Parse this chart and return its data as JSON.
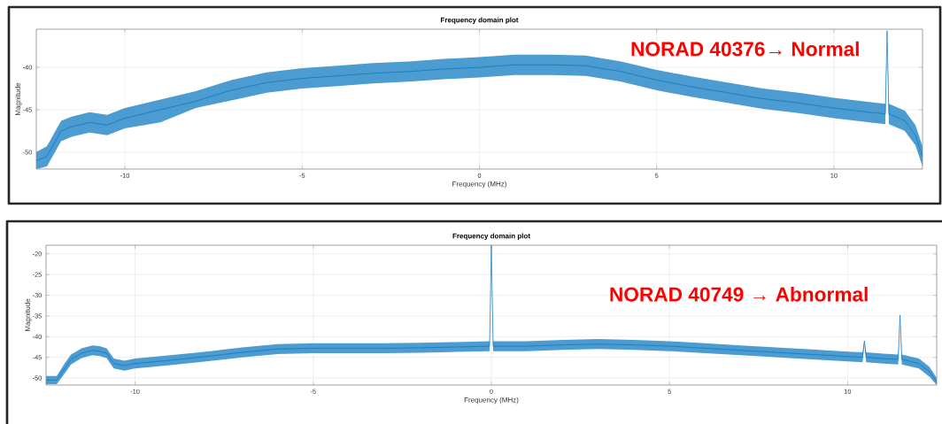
{
  "chart_data": [
    {
      "type": "line",
      "title": "Frequency domain plot",
      "xlabel": "Frequency (MHz)",
      "ylabel": "Magnitude",
      "xlim": [
        -12.5,
        12.5
      ],
      "ylim": [
        -52,
        -35.5
      ],
      "xticks": [
        -10,
        -5,
        0,
        5,
        10
      ],
      "yticks": [
        -50,
        -45,
        -40
      ],
      "grid": true,
      "x": [
        -12.5,
        -12.2,
        -12,
        -11.8,
        -11.5,
        -11,
        -10.5,
        -10,
        -9,
        -8,
        -7,
        -6,
        -5,
        -4,
        -3,
        -2,
        -1,
        0,
        1,
        2,
        3,
        4,
        5,
        6,
        7,
        8,
        9,
        10,
        11,
        11.45,
        11.5,
        11.55,
        12,
        12.3,
        12.5
      ],
      "series": [
        {
          "color": "#0072bd",
          "values": [
            -51,
            -50.5,
            -49,
            -47.5,
            -47,
            -46.5,
            -46.8,
            -46,
            -45,
            -44,
            -42.7,
            -41.8,
            -41.3,
            -41,
            -40.7,
            -40.5,
            -40.2,
            -40,
            -39.7,
            -39.7,
            -39.8,
            -40.5,
            -41.5,
            -42.3,
            -43,
            -43.7,
            -44.2,
            -44.8,
            -45.3,
            -45.5,
            -35.7,
            -45.5,
            -46.3,
            -48,
            -50.5
          ],
          "lower": [
            -52,
            -51.7,
            -50.2,
            -48.7,
            -48.2,
            -47.7,
            -48,
            -47.2,
            -46.5,
            -44.8,
            -43.9,
            -43,
            -42.5,
            -42.2,
            -41.9,
            -41.7,
            -41.4,
            -41.2,
            -40.9,
            -40.9,
            -41,
            -41.7,
            -42.7,
            -43.5,
            -44.2,
            -44.9,
            -45.4,
            -46,
            -46.5,
            -46.7,
            -35.7,
            -46.7,
            -47.5,
            -49.2,
            -51.7
          ],
          "upper": [
            -50,
            -49.3,
            -47.8,
            -46.3,
            -45.8,
            -45.3,
            -45.6,
            -44.8,
            -43.8,
            -42.8,
            -41.5,
            -40.6,
            -40.1,
            -39.8,
            -39.5,
            -39.3,
            -39,
            -38.8,
            -38.5,
            -38.5,
            -38.6,
            -39.3,
            -40.3,
            -41.1,
            -41.8,
            -42.5,
            -43,
            -43.6,
            -44.1,
            -44.3,
            -35.7,
            -44.3,
            -45.1,
            -46.8,
            -49.3
          ]
        }
      ],
      "annotations": [
        "NORAD 40376→ Normal"
      ]
    },
    {
      "type": "line",
      "title": "Frequency domain plot",
      "xlabel": "Frequency (MHz)",
      "ylabel": "Magnitude",
      "xlim": [
        -12.5,
        12.5
      ],
      "ylim": [
        -51.7,
        -17.9
      ],
      "xticks": [
        -10,
        -5,
        0,
        5,
        10
      ],
      "yticks": [
        -50,
        -45,
        -40,
        -35,
        -30,
        -25,
        -20
      ],
      "grid": true,
      "x": [
        -12.5,
        -12.2,
        -12,
        -11.8,
        -11.5,
        -11.2,
        -11,
        -10.8,
        -10.6,
        -10.3,
        -10,
        -9,
        -8,
        -7,
        -6,
        -5,
        -4,
        -3,
        -2,
        -1,
        -0.05,
        0,
        0.05,
        1,
        2,
        3,
        4,
        5,
        6,
        7,
        8,
        9,
        10,
        10.42,
        10.47,
        10.52,
        11,
        11.42,
        11.47,
        11.52,
        12,
        12.3,
        12.5
      ],
      "series": [
        {
          "color": "#0072bd",
          "values": [
            -50.5,
            -50.5,
            -48,
            -45.5,
            -44,
            -43.3,
            -43.5,
            -44,
            -46.5,
            -47,
            -46.5,
            -45.7,
            -44.8,
            -43.8,
            -43,
            -42.8,
            -42.8,
            -42.8,
            -42.7,
            -42.5,
            -42.3,
            -18,
            -42.3,
            -42.3,
            -42,
            -41.8,
            -42,
            -42.3,
            -42.8,
            -43.3,
            -43.8,
            -44.3,
            -44.8,
            -45,
            -41,
            -45,
            -45.3,
            -45.5,
            -34.8,
            -45.5,
            -46.5,
            -48.5,
            -51
          ],
          "lower": [
            -51.5,
            -51.5,
            -49.2,
            -46.7,
            -45.2,
            -44.5,
            -44.7,
            -45.2,
            -47.7,
            -48.2,
            -47.7,
            -46.9,
            -46,
            -45,
            -44.2,
            -44,
            -44,
            -44,
            -43.9,
            -43.7,
            -43.5,
            -18,
            -43.5,
            -43.5,
            -43.2,
            -43,
            -43.2,
            -43.5,
            -44,
            -44.5,
            -45,
            -45.5,
            -46,
            -46.2,
            -41,
            -46.2,
            -46.5,
            -46.7,
            -34.8,
            -46.7,
            -47.7,
            -49.7,
            -51.7
          ],
          "upper": [
            -49.5,
            -49.5,
            -46.8,
            -44.3,
            -42.8,
            -42.1,
            -42.3,
            -42.8,
            -45.3,
            -45.8,
            -45.3,
            -44.5,
            -43.6,
            -42.6,
            -41.8,
            -41.6,
            -41.6,
            -41.6,
            -41.5,
            -41.3,
            -41.1,
            -18,
            -41.1,
            -41.1,
            -40.8,
            -40.6,
            -40.8,
            -41.1,
            -41.6,
            -42.1,
            -42.6,
            -43.1,
            -43.6,
            -43.8,
            -41,
            -43.8,
            -44.1,
            -44.3,
            -34.8,
            -44.3,
            -45.3,
            -47.3,
            -50
          ]
        }
      ],
      "annotations": [
        "NORAD 40749 → Abnormal"
      ]
    }
  ]
}
